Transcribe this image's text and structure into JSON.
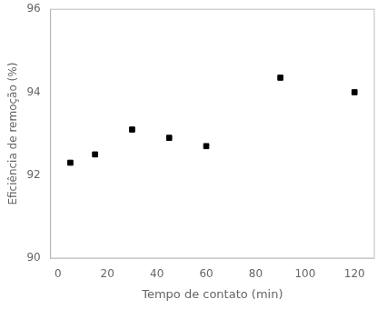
{
  "chart_data": {
    "type": "scatter",
    "x": [
      5,
      15,
      30,
      45,
      60,
      90,
      120
    ],
    "values": [
      92.3,
      92.5,
      93.1,
      92.9,
      92.7,
      94.35,
      94.0
    ],
    "xlabel": "Tempo de contato (min)",
    "ylabel": "Eficiência de remoção (%)",
    "xlim": [
      -3,
      128
    ],
    "ylim": [
      90,
      96
    ],
    "xticks": [
      0,
      20,
      40,
      60,
      80,
      100,
      120
    ],
    "yticks": [
      90,
      92,
      94,
      96
    ],
    "color": "black",
    "marker": "square",
    "grid": false
  }
}
